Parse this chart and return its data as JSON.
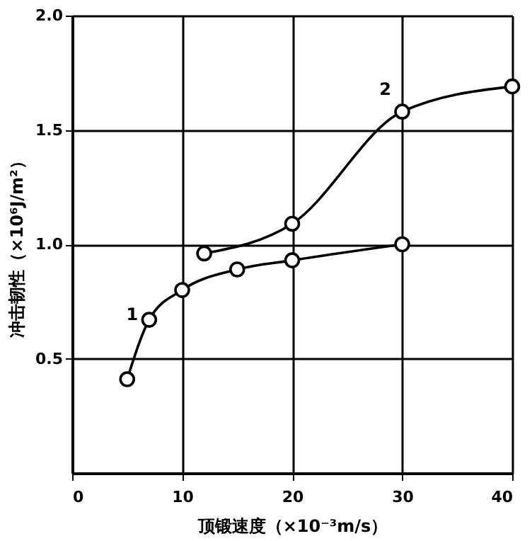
{
  "chart_data": {
    "type": "line",
    "xlabel": "顶锻速度（×10⁻³m/s）",
    "ylabel": "冲击韧性（×10⁶J/m²）",
    "xlim": [
      0,
      40
    ],
    "xticks": [
      0,
      10,
      20,
      30,
      40
    ],
    "ylim": [
      0,
      2.0
    ],
    "yticks": [
      {
        "value": 0.5,
        "label": "0.5"
      },
      {
        "value": 1.0,
        "label": "1.0"
      },
      {
        "value": 1.5,
        "label": "1.5"
      },
      {
        "value": 2.0,
        "label": "2.0"
      }
    ],
    "grid": true,
    "marker": "circle",
    "line_style": "solid",
    "series": [
      {
        "name": "1",
        "color": "#000000",
        "x": [
          5,
          7,
          10,
          15,
          20,
          30
        ],
        "values": [
          0.41,
          0.67,
          0.8,
          0.89,
          0.93,
          1.0
        ]
      },
      {
        "name": "2",
        "color": "#000000",
        "x": [
          12,
          20,
          30,
          40
        ],
        "values": [
          0.96,
          1.09,
          1.58,
          1.69
        ]
      }
    ]
  }
}
